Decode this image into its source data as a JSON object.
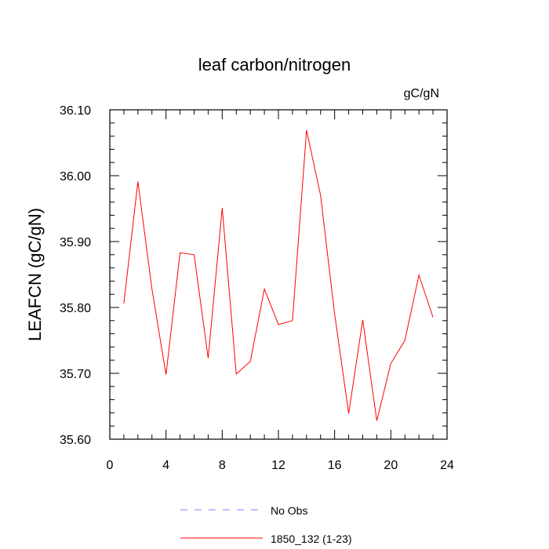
{
  "chart_data": {
    "type": "line",
    "title": "leaf carbon/nitrogen",
    "units_label": "gC/gN",
    "ylabel": "LEAFCN  (gC/gN)",
    "xlabel": "",
    "xlim": [
      0,
      24
    ],
    "ylim": [
      35.6,
      36.1
    ],
    "x_ticks": [
      0,
      4,
      8,
      12,
      16,
      20,
      24
    ],
    "y_ticks": [
      35.6,
      35.7,
      35.8,
      35.9,
      36.0,
      36.1
    ],
    "x_tick_labels": [
      "0",
      "4",
      "8",
      "12",
      "16",
      "20",
      "24"
    ],
    "y_tick_labels": [
      "35.60",
      "35.70",
      "35.80",
      "35.90",
      "36.00",
      "36.10"
    ],
    "grid": false,
    "series": [
      {
        "name": "1850_132 (1-23)",
        "color": "#ff0000",
        "x": [
          1,
          2,
          3,
          4,
          5,
          6,
          7,
          8,
          9,
          10,
          11,
          12,
          13,
          14,
          15,
          16,
          17,
          18,
          19,
          20,
          21,
          22,
          23
        ],
        "y": [
          35.806,
          35.991,
          35.828,
          35.698,
          35.883,
          35.88,
          35.723,
          35.951,
          35.699,
          35.718,
          35.828,
          35.774,
          35.78,
          36.069,
          35.97,
          35.79,
          35.639,
          35.781,
          35.628,
          35.715,
          35.75,
          35.849,
          35.785
        ]
      }
    ],
    "legend": {
      "placement": "bottom",
      "entries": [
        {
          "label": "No Obs",
          "color": "#8080ff",
          "dash": true
        },
        {
          "label": "1850_132 (1-23)",
          "color": "#ff0000",
          "dash": false
        }
      ]
    }
  }
}
